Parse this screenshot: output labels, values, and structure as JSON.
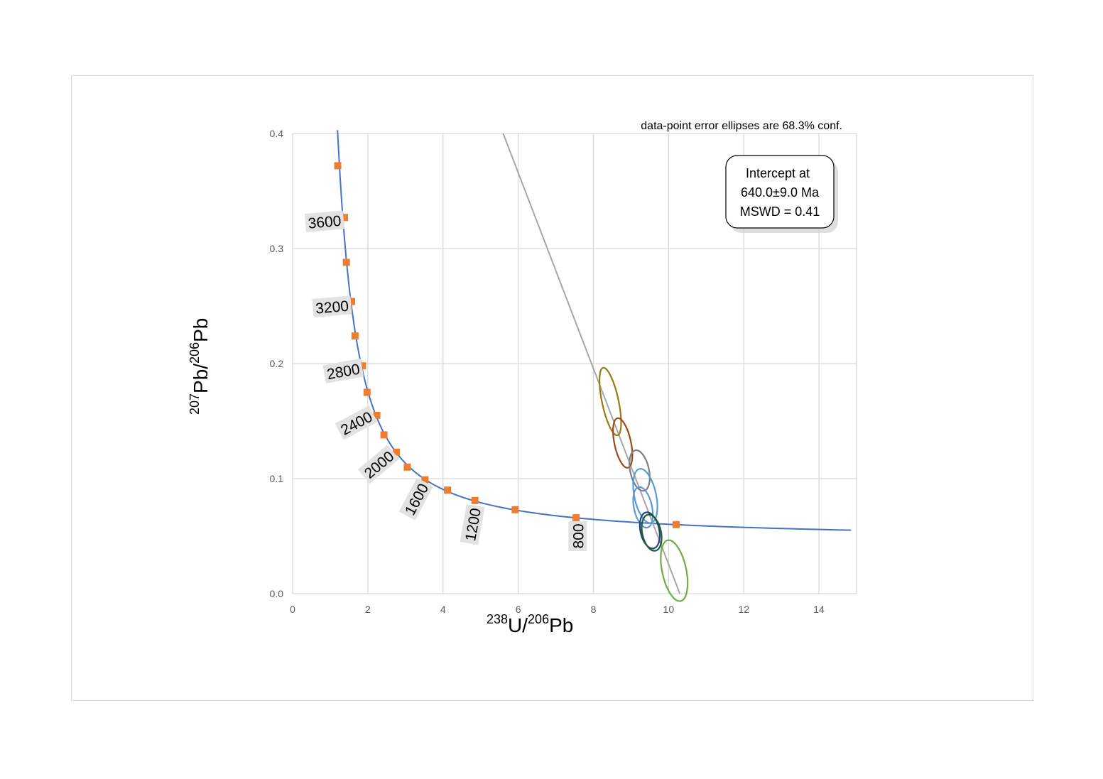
{
  "chart_data": {
    "type": "scatter",
    "title": "",
    "xlabel": {
      "sup1": "238",
      "base1": "U/",
      "sup2": "206",
      "base2": "Pb"
    },
    "ylabel": {
      "sup1": "207",
      "base1": "Pb/",
      "sup2": "206",
      "base2": "Pb"
    },
    "xlim": [
      0,
      15
    ],
    "ylim": [
      0,
      0.4
    ],
    "grid": true,
    "x_ticks": [
      "0",
      "2",
      "4",
      "6",
      "8",
      "10",
      "12",
      "14"
    ],
    "y_ticks": [
      "0.0",
      "0.1",
      "0.2",
      "0.3",
      "0.4"
    ],
    "note": "data-point error ellipses are 68.3% conf.",
    "intercept_box": {
      "line1": "Intercept at",
      "line2": "640.0±9.0 Ma",
      "line3": "MSWD = 0.41"
    },
    "concordia": {
      "color": "#4472c4",
      "age_markers": [
        {
          "x": 1.2,
          "y": 0.372
        },
        {
          "x": 1.38,
          "y": 0.327
        },
        {
          "x": 1.43,
          "y": 0.288
        },
        {
          "x": 1.57,
          "y": 0.254
        },
        {
          "x": 1.66,
          "y": 0.224
        },
        {
          "x": 1.86,
          "y": 0.198
        },
        {
          "x": 1.98,
          "y": 0.175
        },
        {
          "x": 2.24,
          "y": 0.155
        },
        {
          "x": 2.43,
          "y": 0.138
        },
        {
          "x": 2.76,
          "y": 0.123
        },
        {
          "x": 3.05,
          "y": 0.11
        },
        {
          "x": 3.52,
          "y": 0.099
        },
        {
          "x": 4.12,
          "y": 0.09
        },
        {
          "x": 4.85,
          "y": 0.081
        },
        {
          "x": 5.92,
          "y": 0.073
        },
        {
          "x": 7.54,
          "y": 0.066
        },
        {
          "x": 10.2,
          "y": 0.06
        }
      ],
      "marker_color": "#ed7d31",
      "age_labels": [
        {
          "text": "3600",
          "x": 0.85,
          "y": 0.323,
          "rotate": -5
        },
        {
          "text": "3200",
          "x": 1.05,
          "y": 0.249,
          "rotate": -5
        },
        {
          "text": "2800",
          "x": 1.35,
          "y": 0.193,
          "rotate": -10
        },
        {
          "text": "2400",
          "x": 1.7,
          "y": 0.148,
          "rotate": -28
        },
        {
          "text": "2000",
          "x": 2.3,
          "y": 0.112,
          "rotate": -40
        },
        {
          "text": "1600",
          "x": 3.3,
          "y": 0.082,
          "rotate": -62
        },
        {
          "text": "1200",
          "x": 4.8,
          "y": 0.06,
          "rotate": -80
        },
        {
          "text": "800",
          "x": 7.6,
          "y": 0.05,
          "rotate": -90
        }
      ]
    },
    "discordia": {
      "color": "#a6a6a6",
      "points": [
        {
          "x": 5.6,
          "y": 0.4
        },
        {
          "x": 10.3,
          "y": 0.0
        }
      ]
    },
    "series": [
      {
        "x": 8.45,
        "y": 0.167,
        "rx": 0.22,
        "ry": 0.03,
        "color": "#9c7a12"
      },
      {
        "x": 8.78,
        "y": 0.131,
        "rx": 0.22,
        "ry": 0.022,
        "color": "#9c4a1a"
      },
      {
        "x": 9.23,
        "y": 0.107,
        "rx": 0.25,
        "ry": 0.018,
        "color": "#7f7f7f"
      },
      {
        "x": 9.38,
        "y": 0.085,
        "rx": 0.29,
        "ry": 0.024,
        "color": "#5b9bd5"
      },
      {
        "x": 9.32,
        "y": 0.075,
        "rx": 0.24,
        "ry": 0.018,
        "color": "#5b9bd5"
      },
      {
        "x": 9.5,
        "y": 0.055,
        "rx": 0.25,
        "ry": 0.016,
        "color": "#264478"
      },
      {
        "x": 9.55,
        "y": 0.053,
        "rx": 0.25,
        "ry": 0.016,
        "color": "#1f5c2e"
      },
      {
        "x": 10.15,
        "y": 0.02,
        "rx": 0.32,
        "ry": 0.027,
        "color": "#70ad47"
      }
    ]
  }
}
